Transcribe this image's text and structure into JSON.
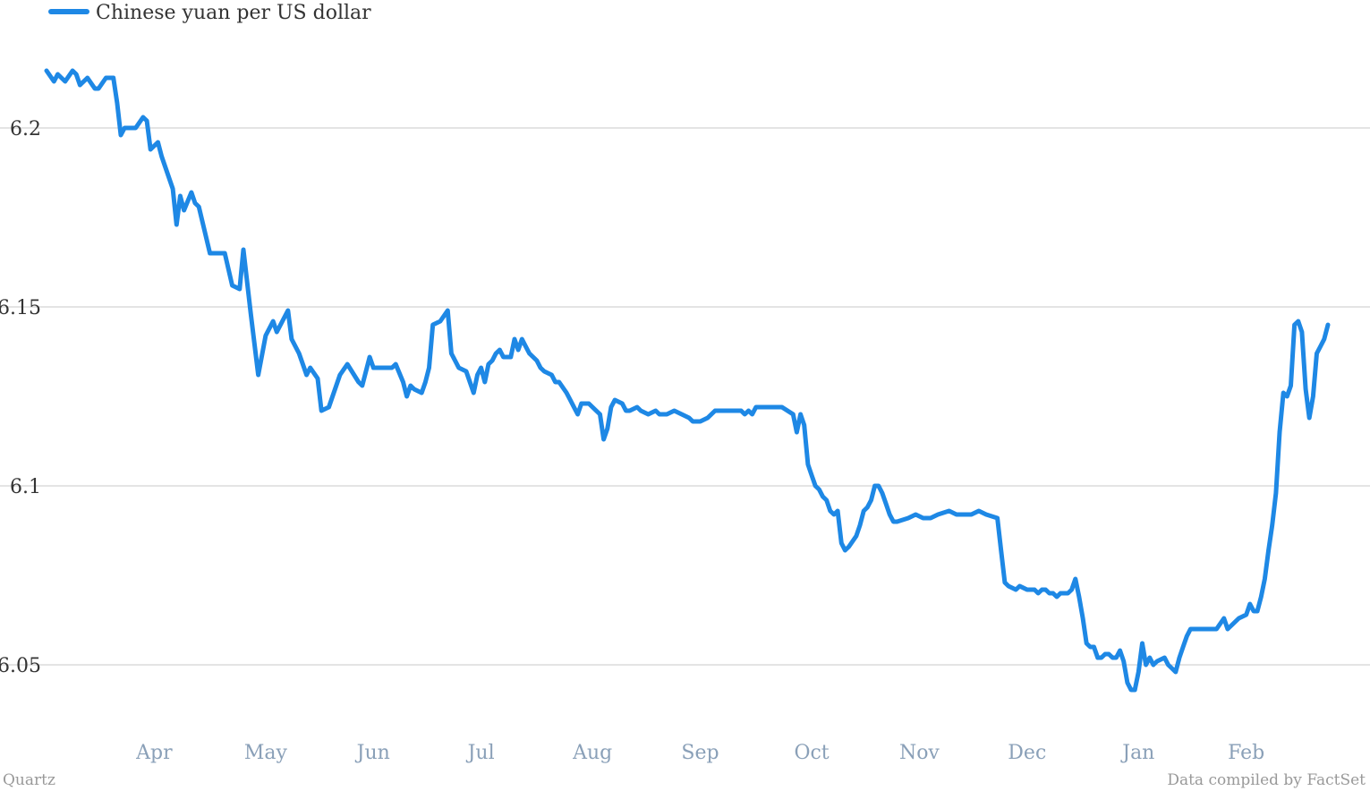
{
  "legend": {
    "label": "Chinese yuan per US dollar",
    "color": "#1e88e5"
  },
  "footer": {
    "left": "Quartz",
    "right": "Data compiled by FactSet"
  },
  "chart_data": {
    "type": "line",
    "title": "",
    "xlabel": "",
    "ylabel": "",
    "ylim": [
      6.025,
      6.235
    ],
    "yticks": [
      6.05,
      6.1,
      6.15,
      6.2
    ],
    "ytick_labels": [
      "6.05",
      "6.1",
      "6.15",
      "6.2"
    ],
    "grid": "horizontal",
    "legend_position": "top-left",
    "xlim": [
      0,
      380
    ],
    "x_unit": "trading day index",
    "x_month_ticks": [
      {
        "label": "Apr",
        "x": 29
      },
      {
        "label": "May",
        "x": 59
      },
      {
        "label": "Jun",
        "x": 88
      },
      {
        "label": "Jul",
        "x": 117
      },
      {
        "label": "Aug",
        "x": 147
      },
      {
        "label": "Sep",
        "x": 176
      },
      {
        "label": "Oct",
        "x": 206
      },
      {
        "label": "Nov",
        "x": 235
      },
      {
        "label": "Dec",
        "x": 264
      },
      {
        "label": "Jan",
        "x": 294
      },
      {
        "label": "Feb",
        "x": 323
      }
    ],
    "series": [
      {
        "name": "Chinese yuan per US dollar",
        "color": "#1e88e5",
        "points": [
          [
            0,
            6.216
          ],
          [
            2,
            6.213
          ],
          [
            3,
            6.215
          ],
          [
            5,
            6.213
          ],
          [
            7,
            6.216
          ],
          [
            8,
            6.215
          ],
          [
            9,
            6.212
          ],
          [
            11,
            6.214
          ],
          [
            13,
            6.211
          ],
          [
            14,
            6.211
          ],
          [
            16,
            6.214
          ],
          [
            18,
            6.214
          ],
          [
            19,
            6.207
          ],
          [
            20,
            6.198
          ],
          [
            21,
            6.2
          ],
          [
            24,
            6.2
          ],
          [
            26,
            6.203
          ],
          [
            27,
            6.202
          ],
          [
            28,
            6.194
          ],
          [
            30,
            6.196
          ],
          [
            31,
            6.192
          ],
          [
            34,
            6.183
          ],
          [
            35,
            6.173
          ],
          [
            36,
            6.181
          ],
          [
            37,
            6.177
          ],
          [
            39,
            6.182
          ],
          [
            40,
            6.179
          ],
          [
            41,
            6.178
          ],
          [
            44,
            6.165
          ],
          [
            48,
            6.165
          ],
          [
            50,
            6.156
          ],
          [
            52,
            6.155
          ],
          [
            53,
            6.166
          ],
          [
            55,
            6.148
          ],
          [
            57,
            6.131
          ],
          [
            59,
            6.142
          ],
          [
            61,
            6.146
          ],
          [
            62,
            6.143
          ],
          [
            65,
            6.149
          ],
          [
            66,
            6.141
          ],
          [
            68,
            6.137
          ],
          [
            70,
            6.131
          ],
          [
            71,
            6.133
          ],
          [
            73,
            6.13
          ],
          [
            74,
            6.121
          ],
          [
            76,
            6.122
          ],
          [
            79,
            6.131
          ],
          [
            81,
            6.134
          ],
          [
            84,
            6.129
          ],
          [
            85,
            6.128
          ],
          [
            87,
            6.136
          ],
          [
            88,
            6.133
          ],
          [
            93,
            6.133
          ],
          [
            94,
            6.134
          ],
          [
            96,
            6.129
          ],
          [
            97,
            6.125
          ],
          [
            98,
            6.128
          ],
          [
            99,
            6.127
          ],
          [
            101,
            6.126
          ],
          [
            102,
            6.129
          ],
          [
            103,
            6.133
          ],
          [
            104,
            6.145
          ],
          [
            106,
            6.146
          ],
          [
            108,
            6.149
          ],
          [
            109,
            6.137
          ],
          [
            111,
            6.133
          ],
          [
            113,
            6.132
          ],
          [
            115,
            6.126
          ],
          [
            116,
            6.131
          ],
          [
            117,
            6.133
          ],
          [
            118,
            6.129
          ],
          [
            119,
            6.134
          ],
          [
            120,
            6.135
          ],
          [
            121,
            6.137
          ],
          [
            122,
            6.138
          ],
          [
            123,
            6.136
          ],
          [
            125,
            6.136
          ],
          [
            126,
            6.141
          ],
          [
            127,
            6.138
          ],
          [
            128,
            6.141
          ],
          [
            129,
            6.139
          ],
          [
            130,
            6.137
          ],
          [
            132,
            6.135
          ],
          [
            133,
            6.133
          ],
          [
            134,
            6.132
          ],
          [
            136,
            6.131
          ],
          [
            137,
            6.129
          ],
          [
            138,
            6.129
          ],
          [
            140,
            6.126
          ],
          [
            141,
            6.124
          ],
          [
            142,
            6.122
          ],
          [
            143,
            6.12
          ],
          [
            144,
            6.123
          ],
          [
            146,
            6.123
          ],
          [
            148,
            6.121
          ],
          [
            149,
            6.12
          ],
          [
            150,
            6.113
          ],
          [
            151,
            6.116
          ],
          [
            152,
            6.122
          ],
          [
            153,
            6.124
          ],
          [
            155,
            6.123
          ],
          [
            156,
            6.121
          ],
          [
            157,
            6.121
          ],
          [
            159,
            6.122
          ],
          [
            160,
            6.121
          ],
          [
            162,
            6.12
          ],
          [
            164,
            6.121
          ],
          [
            165,
            6.12
          ],
          [
            167,
            6.12
          ],
          [
            169,
            6.121
          ],
          [
            171,
            6.12
          ],
          [
            173,
            6.119
          ],
          [
            174,
            6.118
          ],
          [
            176,
            6.118
          ],
          [
            178,
            6.119
          ],
          [
            180,
            6.121
          ],
          [
            182,
            6.121
          ],
          [
            185,
            6.121
          ],
          [
            187,
            6.121
          ],
          [
            188,
            6.12
          ],
          [
            189,
            6.121
          ],
          [
            190,
            6.12
          ],
          [
            191,
            6.122
          ],
          [
            194,
            6.122
          ],
          [
            198,
            6.122
          ],
          [
            201,
            6.12
          ],
          [
            202,
            6.115
          ],
          [
            203,
            6.12
          ],
          [
            204,
            6.117
          ],
          [
            205,
            6.106
          ],
          [
            206,
            6.103
          ],
          [
            207,
            6.1
          ],
          [
            208,
            6.099
          ],
          [
            209,
            6.097
          ],
          [
            210,
            6.096
          ],
          [
            211,
            6.093
          ],
          [
            212,
            6.092
          ],
          [
            213,
            6.093
          ],
          [
            214,
            6.084
          ],
          [
            215,
            6.082
          ],
          [
            216,
            6.083
          ],
          [
            218,
            6.086
          ],
          [
            219,
            6.089
          ],
          [
            220,
            6.093
          ],
          [
            221,
            6.094
          ],
          [
            222,
            6.096
          ],
          [
            223,
            6.1
          ],
          [
            224,
            6.1
          ],
          [
            225,
            6.098
          ],
          [
            226,
            6.095
          ],
          [
            227,
            6.092
          ],
          [
            228,
            6.09
          ],
          [
            229,
            6.09
          ],
          [
            232,
            6.091
          ],
          [
            234,
            6.092
          ],
          [
            236,
            6.091
          ],
          [
            238,
            6.091
          ],
          [
            240,
            6.092
          ],
          [
            243,
            6.093
          ],
          [
            245,
            6.092
          ],
          [
            249,
            6.092
          ],
          [
            251,
            6.093
          ],
          [
            253,
            6.092
          ],
          [
            256,
            6.091
          ],
          [
            257,
            6.082
          ],
          [
            258,
            6.073
          ],
          [
            259,
            6.072
          ],
          [
            261,
            6.071
          ],
          [
            262,
            6.072
          ],
          [
            264,
            6.071
          ],
          [
            266,
            6.071
          ],
          [
            267,
            6.07
          ],
          [
            268,
            6.071
          ],
          [
            269,
            6.071
          ],
          [
            270,
            6.07
          ],
          [
            271,
            6.07
          ],
          [
            272,
            6.069
          ],
          [
            273,
            6.07
          ],
          [
            275,
            6.07
          ],
          [
            276,
            6.071
          ],
          [
            277,
            6.074
          ],
          [
            278,
            6.069
          ],
          [
            279,
            6.063
          ],
          [
            280,
            6.056
          ],
          [
            281,
            6.055
          ],
          [
            282,
            6.055
          ],
          [
            283,
            6.052
          ],
          [
            284,
            6.052
          ],
          [
            285,
            6.053
          ],
          [
            286,
            6.053
          ],
          [
            287,
            6.052
          ],
          [
            288,
            6.052
          ],
          [
            289,
            6.054
          ],
          [
            290,
            6.051
          ],
          [
            291,
            6.045
          ],
          [
            292,
            6.043
          ],
          [
            293,
            6.043
          ],
          [
            294,
            6.048
          ],
          [
            295,
            6.056
          ],
          [
            296,
            6.05
          ],
          [
            297,
            6.052
          ],
          [
            298,
            6.05
          ],
          [
            299,
            6.051
          ],
          [
            301,
            6.052
          ],
          [
            302,
            6.05
          ],
          [
            303,
            6.049
          ],
          [
            304,
            6.048
          ],
          [
            305,
            6.052
          ],
          [
            306,
            6.055
          ],
          [
            307,
            6.058
          ],
          [
            308,
            6.06
          ],
          [
            312,
            6.06
          ],
          [
            315,
            6.06
          ],
          [
            317,
            6.063
          ],
          [
            318,
            6.06
          ],
          [
            319,
            6.061
          ],
          [
            321,
            6.063
          ],
          [
            323,
            6.064
          ],
          [
            324,
            6.067
          ],
          [
            325,
            6.065
          ],
          [
            326,
            6.065
          ],
          [
            327,
            6.069
          ],
          [
            328,
            6.074
          ],
          [
            329,
            6.082
          ],
          [
            330,
            6.089
          ],
          [
            331,
            6.098
          ],
          [
            332,
            6.115
          ],
          [
            333,
            6.126
          ],
          [
            334,
            6.125
          ],
          [
            335,
            6.128
          ],
          [
            336,
            6.145
          ],
          [
            337,
            6.146
          ],
          [
            338,
            6.143
          ],
          [
            339,
            6.127
          ],
          [
            340,
            6.119
          ],
          [
            341,
            6.125
          ],
          [
            342,
            6.137
          ],
          [
            343,
            6.139
          ],
          [
            344,
            6.141
          ],
          [
            345,
            6.145
          ]
        ]
      }
    ]
  }
}
